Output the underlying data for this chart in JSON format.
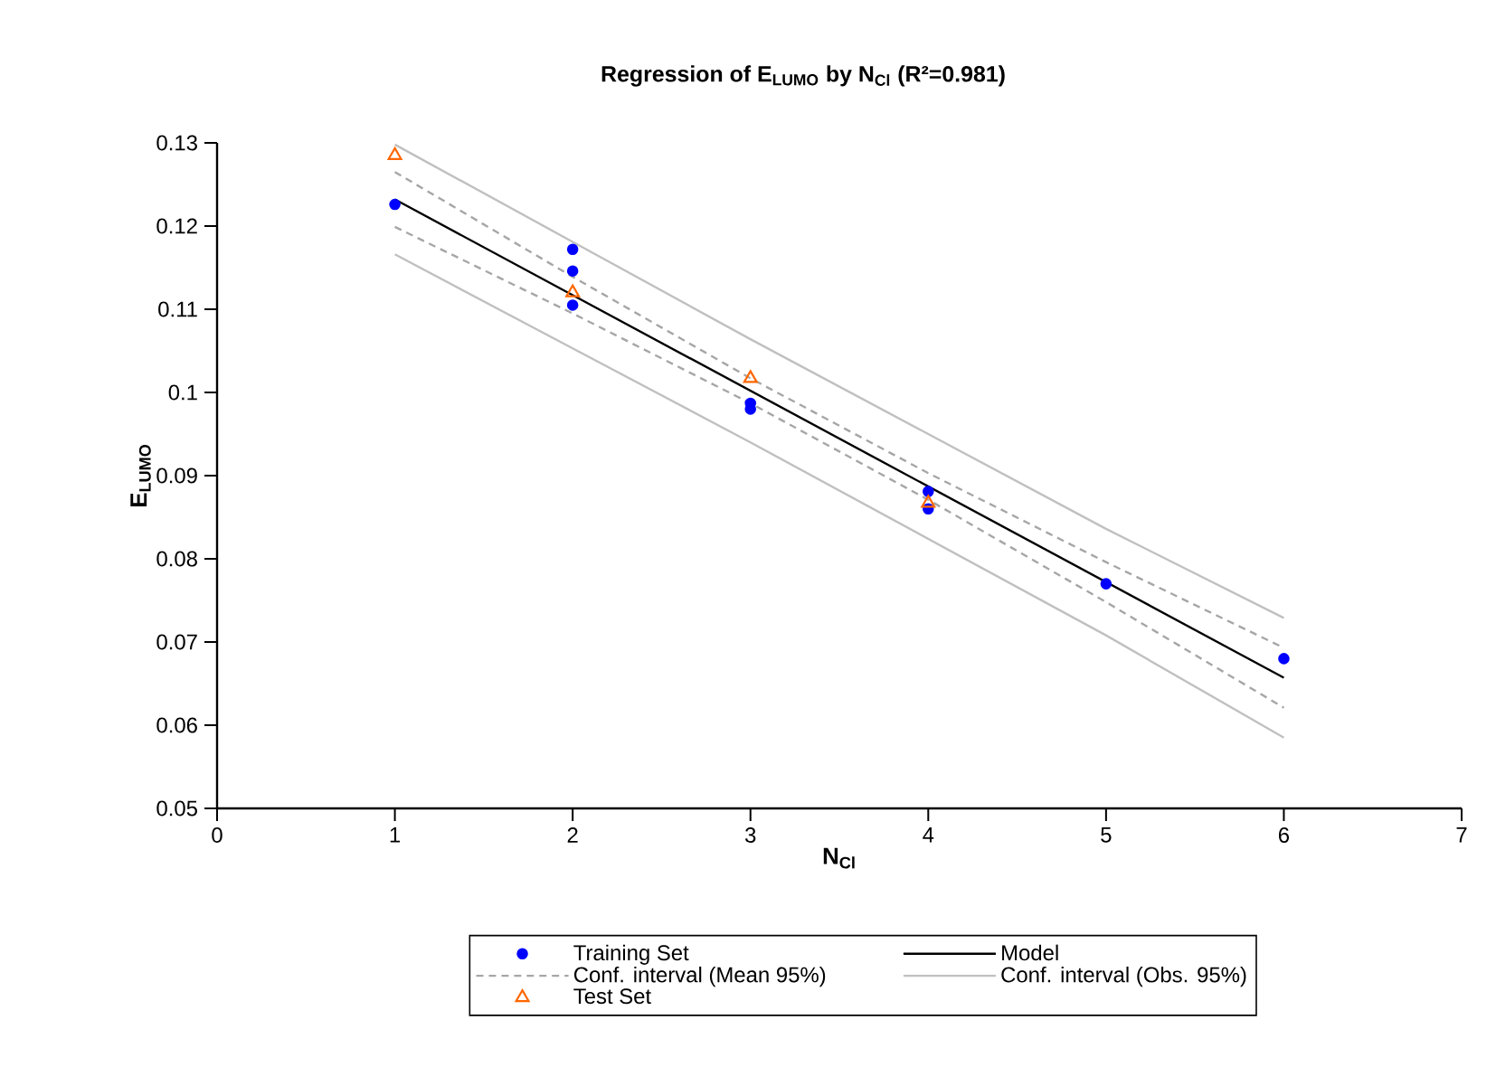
{
  "chart_data": {
    "type": "scatter",
    "title": "Regression of E$_{LUMO}$ by N$_{Cl}$ (R²=0.981)",
    "xlabel": "N$_{Cl}$",
    "ylabel": "E$_{LUMO}$",
    "xlim": [
      0,
      7
    ],
    "xticks": [
      0,
      1,
      2,
      3,
      4,
      5,
      6,
      7
    ],
    "ylim": [
      0.05,
      0.13
    ],
    "yticks": [
      0.05,
      0.06,
      0.07,
      0.08,
      0.09,
      0.1,
      0.11,
      0.12,
      0.13
    ],
    "grid": false,
    "legend": "bottom",
    "series": [
      {
        "name": "Training Set",
        "color": "#0000ff",
        "marker": "circle",
        "x": [
          1,
          2,
          2,
          2,
          3,
          3,
          4,
          4,
          5,
          6
        ],
        "values": [
          0.1226,
          0.1172,
          0.1146,
          0.1105,
          0.0987,
          0.098,
          0.0881,
          0.086,
          0.077,
          0.068
        ]
      },
      {
        "name": "Model",
        "type": "line",
        "color": "#000000",
        "line_style": "solid",
        "x": [
          1,
          6
        ],
        "values": [
          0.1232,
          0.0657
        ]
      },
      {
        "name": "Conf. interval (Mean 95%)",
        "type": "line",
        "color": "#a6a6a6",
        "line_style": "dashed",
        "x": [
          1,
          2,
          3,
          4,
          5,
          6
        ],
        "values": [
          0.1199,
          0.1095,
          0.0987,
          0.0871,
          0.0748,
          0.0621
        ]
      },
      {
        "name": "Conf. interval (Obs. 95%)",
        "type": "line",
        "color": "#c0c0c0",
        "line_style": "solid",
        "x": [
          1,
          2,
          3,
          4,
          5,
          6
        ],
        "values": [
          0.1166,
          0.1053,
          0.094,
          0.0824,
          0.0708,
          0.0585
        ]
      },
      {
        "name": "Test Set",
        "color": "#ff6600",
        "marker": "triangle",
        "x": [
          1,
          2,
          3,
          4
        ],
        "values": [
          0.1285,
          0.112,
          0.1017,
          0.0867
        ]
      },
      {
        "type": "line",
        "color": "#a6a6a6",
        "line_style": "dashed",
        "x": [
          1,
          2,
          3,
          4,
          5,
          6
        ],
        "values": [
          0.1265,
          0.1139,
          0.1017,
          0.0903,
          0.0796,
          0.0693
        ]
      },
      {
        "type": "line",
        "color": "#c0c0c0",
        "line_style": "solid",
        "x": [
          1,
          2,
          3,
          4,
          5,
          6
        ],
        "values": [
          0.1298,
          0.1181,
          0.1064,
          0.095,
          0.0836,
          0.0729
        ]
      }
    ]
  }
}
